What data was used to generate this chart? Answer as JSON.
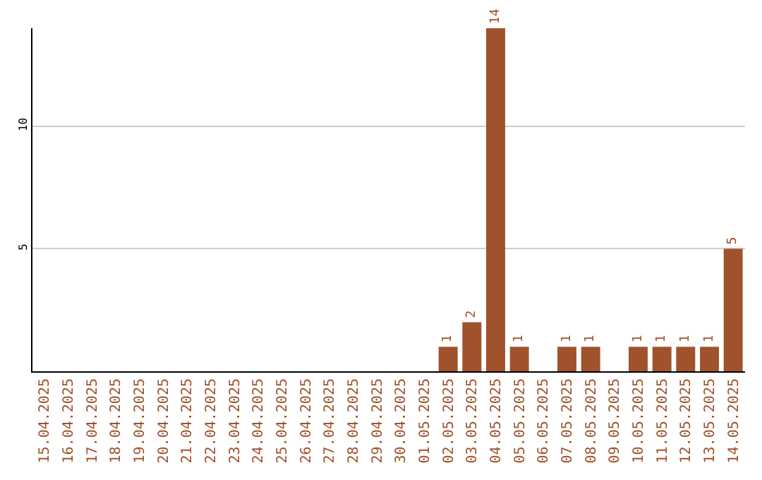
{
  "chart_data": {
    "type": "bar",
    "categories": [
      "15.04.2025",
      "16.04.2025",
      "17.04.2025",
      "18.04.2025",
      "19.04.2025",
      "20.04.2025",
      "21.04.2025",
      "22.04.2025",
      "23.04.2025",
      "24.04.2025",
      "25.04.2025",
      "26.04.2025",
      "27.04.2025",
      "28.04.2025",
      "29.04.2025",
      "30.04.2025",
      "01.05.2025",
      "02.05.2025",
      "03.05.2025",
      "04.05.2025",
      "05.05.2025",
      "06.05.2025",
      "07.05.2025",
      "08.05.2025",
      "09.05.2025",
      "10.05.2025",
      "11.05.2025",
      "12.05.2025",
      "13.05.2025",
      "14.05.2025"
    ],
    "values": [
      0,
      0,
      0,
      0,
      0,
      0,
      0,
      0,
      0,
      0,
      0,
      0,
      0,
      0,
      0,
      0,
      0,
      1,
      2,
      14,
      1,
      0,
      1,
      1,
      0,
      1,
      1,
      1,
      1,
      5
    ],
    "value_labels": [
      null,
      null,
      null,
      null,
      null,
      null,
      null,
      null,
      null,
      null,
      null,
      null,
      null,
      null,
      null,
      null,
      null,
      "1",
      "2",
      "14",
      "1",
      null,
      "1",
      "1",
      null,
      "1",
      "1",
      "1",
      "1",
      "5"
    ],
    "color": "#a0522d",
    "ylim": [
      0,
      14
    ],
    "yticks": [
      5,
      10
    ],
    "grid": "y",
    "legend": false
  }
}
